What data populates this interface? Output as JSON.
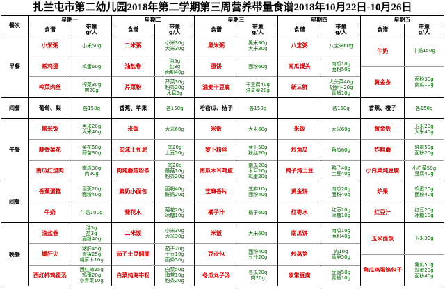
{
  "title": "扎兰屯市第二幼儿园2018年第二学期第三周营养带量食谱2018年10月22日-10月26日",
  "header": {
    "meal": "餐次",
    "days": [
      "星期一",
      "星期二",
      "星期三",
      "星期四",
      "星期五"
    ],
    "recipe": "食谱",
    "amount": "带量",
    "unit": "g/人"
  },
  "meals": [
    {
      "name": "早餐",
      "days": [
        [
          {
            "dish": "小米粥",
            "amount": [
              "小米50g"
            ]
          },
          {
            "dish": "煮鸡蛋",
            "amount": [
              "鸡蛋60g"
            ]
          },
          {
            "dish": "榨菜肉丝",
            "amount": [
              "榨菜30g",
              "肉20g"
            ]
          }
        ],
        [
          {
            "dish": "二米粥",
            "amount": [
              "小米30g",
              "大米30g"
            ]
          },
          {
            "dish": "油盐卷",
            "amount": [
              "油5g",
              "盐3g",
              "面粉40g"
            ]
          },
          {
            "dish": "芹菜粉",
            "amount": [
              "芹菜30g",
              "粉条20g",
              "木耳5g"
            ]
          }
        ],
        [
          {
            "dish": "黑米粥",
            "amount": [
              "黑米30g",
              "大米30g"
            ]
          },
          {
            "dish": "蛋饼",
            "amount": [
              "面粉60g"
            ]
          },
          {
            "dish": "油麦干豆腐",
            "amount": [
              "干豆腐40g",
              "油麦菜20g"
            ]
          }
        ],
        [
          {
            "dish": "八宝粥",
            "amount": [
              "八宝米60g"
            ]
          },
          {
            "dish": "南瓜馒头",
            "amount": [
              "南瓜10g",
              "面粉50g"
            ]
          },
          {
            "dish": "新三鲜",
            "amount": [
              "大头菜40g",
              "胡萝卜20g",
              "青椒10g"
            ]
          }
        ],
        [
          {
            "dish": "牛奶",
            "amount": [
              "牛奶150g"
            ]
          },
          {
            "dish": "黄金条",
            "amount": [
              "面粉30g",
              "南瓜10g"
            ]
          }
        ]
      ]
    },
    {
      "name": "间餐",
      "days": [
        [
          {
            "dish": "葡萄、梨",
            "amount": [
              "各150g"
            ]
          }
        ],
        [
          {
            "dish": "香蕉、苹果",
            "amount": [
              "各150g"
            ]
          }
        ],
        [
          {
            "dish": "哈密瓜、桔子",
            "amount": [
              "各150g"
            ]
          }
        ],
        [
          {
            "amount": [
              "各150g"
            ]
          }
        ],
        [
          {
            "dish": "香蕉、橙子",
            "amount": [
              "各150g"
            ]
          }
        ]
      ]
    },
    {
      "name": "午餐",
      "days": [
        [
          {
            "dish": "黑米饭",
            "amount": [
              "黑米20g",
              "大米40g"
            ]
          },
          {
            "dish": "蒜香菜花",
            "amount": [
              "菜花60g",
              "蒜苗30g"
            ]
          },
          {
            "dish": "南瓜红烧肉",
            "amount": [
              "南瓜30g",
              "肉20g"
            ]
          }
        ],
        [
          {
            "dish": "米饭",
            "amount": [
              "大米60g"
            ]
          },
          {
            "dish": "肉沫土豆泥",
            "amount": [
              "肉20g",
              "土豆50g"
            ]
          },
          {
            "dish": "肉炖蘑菇粉条",
            "amount": [
              "肉20g",
              "蘑菇10g",
              "粉条20g"
            ]
          }
        ],
        [
          {
            "dish": "米饭",
            "amount": [
              "大米60g"
            ]
          },
          {
            "dish": "萝卜粉丝",
            "amount": [
              "萝卜50g",
              "粉丝20g"
            ]
          },
          {
            "dish": "南瓜木耳鸡蛋",
            "amount": [
              "南瓜20g",
              "木耳20g",
              "鸡蛋20g"
            ]
          }
        ],
        [
          {
            "dish": "米饭",
            "amount": [
              "大米60g"
            ]
          },
          {
            "dish": "炒角瓜",
            "amount": [
              "角瓜60g"
            ]
          },
          {
            "dish": "鸭子炖土豆",
            "amount": [
              "鸭子40g",
              "土豆40g"
            ]
          }
        ],
        [
          {
            "dish": "黄金饭",
            "amount": [
              "玉米20g",
              "大米40g"
            ]
          },
          {
            "dish": "炸鲜蘑",
            "amount": [
              "鲜蘑50g",
              "面粉20g"
            ]
          },
          {
            "dish": "小白菜炖豆腐",
            "amount": [
              "小白菜50g",
              "豆腐40g"
            ]
          }
        ]
      ]
    },
    {
      "name": "间餐",
      "days": [
        [
          {
            "dish": "香蕉蛋糕",
            "amount": [
              "香蕉20g",
              "面粉40g"
            ]
          },
          {
            "dish": "牛奶",
            "amount": [
              "牛奶100g"
            ]
          }
        ],
        [
          {
            "dish": "鲜奶小面包",
            "amount": [
              "面粉40g",
              "鲜奶20g"
            ]
          },
          {
            "dish": "菊花水",
            "amount": [
              "菊花20g",
              "冰糖10g"
            ]
          }
        ],
        [
          {
            "dish": "芝麻香片",
            "amount": [
              "芝麻10g",
              "面粉40g"
            ]
          },
          {
            "dish": "橘子汁",
            "amount": [
              "橘子60g"
            ]
          }
        ],
        [
          {
            "dish": "黄金饼",
            "amount": [
              "南瓜20g",
              "面粉40g"
            ]
          },
          {
            "dish": "红枣水",
            "amount": [
              "红枣20g",
              "冰糖10g"
            ]
          }
        ],
        [
          {
            "dish": "炉果",
            "amount": [
              "鸡蛋20g",
              "面粉40g"
            ]
          },
          {
            "dish": "红豆汁",
            "amount": [
              "红豆20g",
              "冰糖10g"
            ]
          }
        ]
      ]
    },
    {
      "name": "晚餐",
      "days": [
        [
          {
            "dish": "油盐卷",
            "amount": [
              "油5g",
              "盐3g",
              "面粉40g"
            ]
          },
          {
            "dish": "爆肝尖",
            "amount": [
              "猪肝45g",
              "青椒25g",
              "胡萝卜10g"
            ]
          },
          {
            "dish": "西红柿鸡蛋汤",
            "amount": [
              "西红柿25g",
              "鸡蛋20g",
              "小青菜10g"
            ]
          }
        ],
        [
          {
            "dish": "二米饭",
            "amount": [
              "小米30g",
              "大米30g"
            ]
          },
          {
            "dish": "茄子土豆焖面",
            "amount": [
              "茄子20g",
              "土豆10g",
              "面条50g"
            ]
          },
          {
            "dish": "白菜炖海带粉",
            "amount": [
              "白菜50g",
              "海带10g",
              "粉条20g"
            ]
          }
        ],
        [
          {
            "dish": "米饭",
            "amount": [
              "大米60g"
            ]
          },
          {
            "dish": "豆沙包",
            "amount": [
              "面粉40g",
              "豆沙20g"
            ]
          },
          {
            "dish": "冬瓜丸子汤",
            "amount": [
              "冬瓜20g",
              "肉20g"
            ]
          }
        ],
        [
          {
            "dish": "南瓜饼",
            "amount": [
              "南瓜10g",
              "面粉40g"
            ]
          },
          {
            "dish": "炒莴笋",
            "amount": [
              "肉10g",
              "莴笋50g"
            ]
          },
          {
            "dish": "家常豆腐",
            "amount": [
              "豆腐50g",
              "青椒10g"
            ]
          }
        ],
        [
          {
            "dish": "玉米面饭",
            "amount": [
              "玉米30g"
            ]
          },
          {
            "dish": "角瓜鸡蛋馅包子",
            "amount": [
              "角瓜50g",
              "鸡蛋20g",
              "面粉40g"
            ]
          }
        ]
      ]
    }
  ]
}
